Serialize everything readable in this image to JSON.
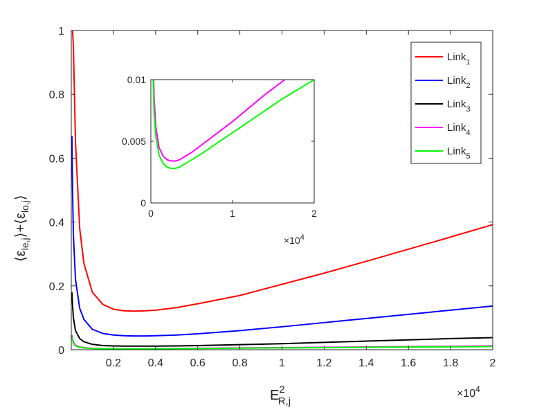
{
  "chart_data": {
    "type": "line",
    "main": {
      "xlabel": {
        "base": "E",
        "superscript": "2",
        "subscript": "R,j"
      },
      "ylabel": "⟨ε_le,j⟩+⟨ε_lo,j⟩",
      "ylabel_parts": {
        "open1": "⟨",
        "eps1": "ε",
        "sub1": "le,j",
        "close1": "⟩",
        "plus": "+",
        "open2": "⟨",
        "eps2": "ε",
        "sub2": "lo,j",
        "close2": "⟩"
      },
      "xlim": [
        0,
        2
      ],
      "ylim": [
        0,
        1
      ],
      "x_ticks": [
        "0.2",
        "0.4",
        "0.6",
        "0.8",
        "1",
        "1.2",
        "1.4",
        "1.6",
        "1.8",
        "2"
      ],
      "x_tick_values": [
        0.2,
        0.4,
        0.6,
        0.8,
        1.0,
        1.2,
        1.4,
        1.6,
        1.8,
        2.0
      ],
      "y_ticks": [
        "0",
        "0.2",
        "0.4",
        "0.6",
        "0.8",
        "1"
      ],
      "y_tick_values": [
        0,
        0.2,
        0.4,
        0.6,
        0.8,
        1.0
      ],
      "x_exponent": {
        "prefix": "×10",
        "power": "4"
      },
      "series": [
        {
          "name": "Link",
          "subscript": "1",
          "color": "#ff0000",
          "x": [
            0.003,
            0.006,
            0.01,
            0.02,
            0.04,
            0.06,
            0.1,
            0.15,
            0.2,
            0.25,
            0.3,
            0.35,
            0.4,
            0.5,
            0.6,
            0.8,
            1.0,
            1.2,
            1.4,
            1.6,
            1.8,
            2.0
          ],
          "values": [
            1.0,
            1.0,
            0.95,
            0.65,
            0.38,
            0.27,
            0.18,
            0.142,
            0.127,
            0.122,
            0.121,
            0.122,
            0.124,
            0.132,
            0.144,
            0.17,
            0.205,
            0.24,
            0.277,
            0.315,
            0.353,
            0.392
          ]
        },
        {
          "name": "Link",
          "subscript": "2",
          "color": "#0000ff",
          "x": [
            0.003,
            0.006,
            0.01,
            0.02,
            0.04,
            0.06,
            0.1,
            0.15,
            0.2,
            0.25,
            0.3,
            0.35,
            0.4,
            0.5,
            0.6,
            0.8,
            1.0,
            1.2,
            1.4,
            1.6,
            1.8,
            2.0
          ],
          "values": [
            0.67,
            0.5,
            0.36,
            0.22,
            0.13,
            0.095,
            0.064,
            0.051,
            0.046,
            0.044,
            0.043,
            0.043,
            0.044,
            0.046,
            0.05,
            0.06,
            0.072,
            0.085,
            0.098,
            0.111,
            0.124,
            0.137
          ]
        },
        {
          "name": "Link",
          "subscript": "3",
          "color": "#000000",
          "x": [
            0.003,
            0.006,
            0.01,
            0.02,
            0.04,
            0.06,
            0.1,
            0.15,
            0.2,
            0.25,
            0.3,
            0.35,
            0.4,
            0.5,
            0.6,
            0.8,
            1.0,
            1.2,
            1.4,
            1.6,
            1.8,
            2.0
          ],
          "values": [
            0.18,
            0.14,
            0.1,
            0.06,
            0.035,
            0.025,
            0.017,
            0.013,
            0.012,
            0.0115,
            0.0113,
            0.0113,
            0.0115,
            0.012,
            0.013,
            0.016,
            0.019,
            0.023,
            0.027,
            0.031,
            0.035,
            0.038
          ]
        },
        {
          "name": "Link",
          "subscript": "4",
          "color": "#ff00ff",
          "x": [
            0.003,
            0.006,
            0.01,
            0.02,
            0.04,
            0.06,
            0.1,
            0.15,
            0.2,
            0.25,
            0.3,
            0.35,
            0.4,
            0.5,
            0.6,
            0.8,
            1.0,
            1.2,
            1.4,
            1.6,
            1.8,
            2.0
          ],
          "values": [
            0.046,
            0.034,
            0.024,
            0.014,
            0.0085,
            0.0062,
            0.0045,
            0.0038,
            0.0035,
            0.0034,
            0.0034,
            0.0035,
            0.0037,
            0.0041,
            0.0046,
            0.0056,
            0.0066,
            0.0077,
            0.0088,
            0.0098,
            0.0108,
            0.0118
          ]
        },
        {
          "name": "Link",
          "subscript": "5",
          "color": "#00ff00",
          "x": [
            0.003,
            0.006,
            0.01,
            0.02,
            0.04,
            0.06,
            0.1,
            0.15,
            0.2,
            0.25,
            0.3,
            0.35,
            0.4,
            0.5,
            0.6,
            0.8,
            1.0,
            1.2,
            1.4,
            1.6,
            1.8,
            2.0
          ],
          "values": [
            0.04,
            0.03,
            0.021,
            0.012,
            0.0072,
            0.0054,
            0.0039,
            0.0032,
            0.0029,
            0.0028,
            0.0028,
            0.0029,
            0.0031,
            0.0035,
            0.0039,
            0.0048,
            0.0057,
            0.0066,
            0.0075,
            0.0084,
            0.0092,
            0.01
          ]
        }
      ],
      "legend_position": "top-right"
    },
    "inset": {
      "xlim": [
        0,
        2
      ],
      "ylim": [
        0,
        0.01
      ],
      "x_ticks": [
        "0",
        "1",
        "2"
      ],
      "x_tick_values": [
        0,
        1,
        2
      ],
      "y_ticks": [
        "0",
        "0.005",
        "0.01"
      ],
      "y_tick_values": [
        0,
        0.005,
        0.01
      ],
      "x_exponent": {
        "prefix": "×10",
        "power": "4"
      },
      "series_shown": [
        3,
        4
      ]
    }
  }
}
